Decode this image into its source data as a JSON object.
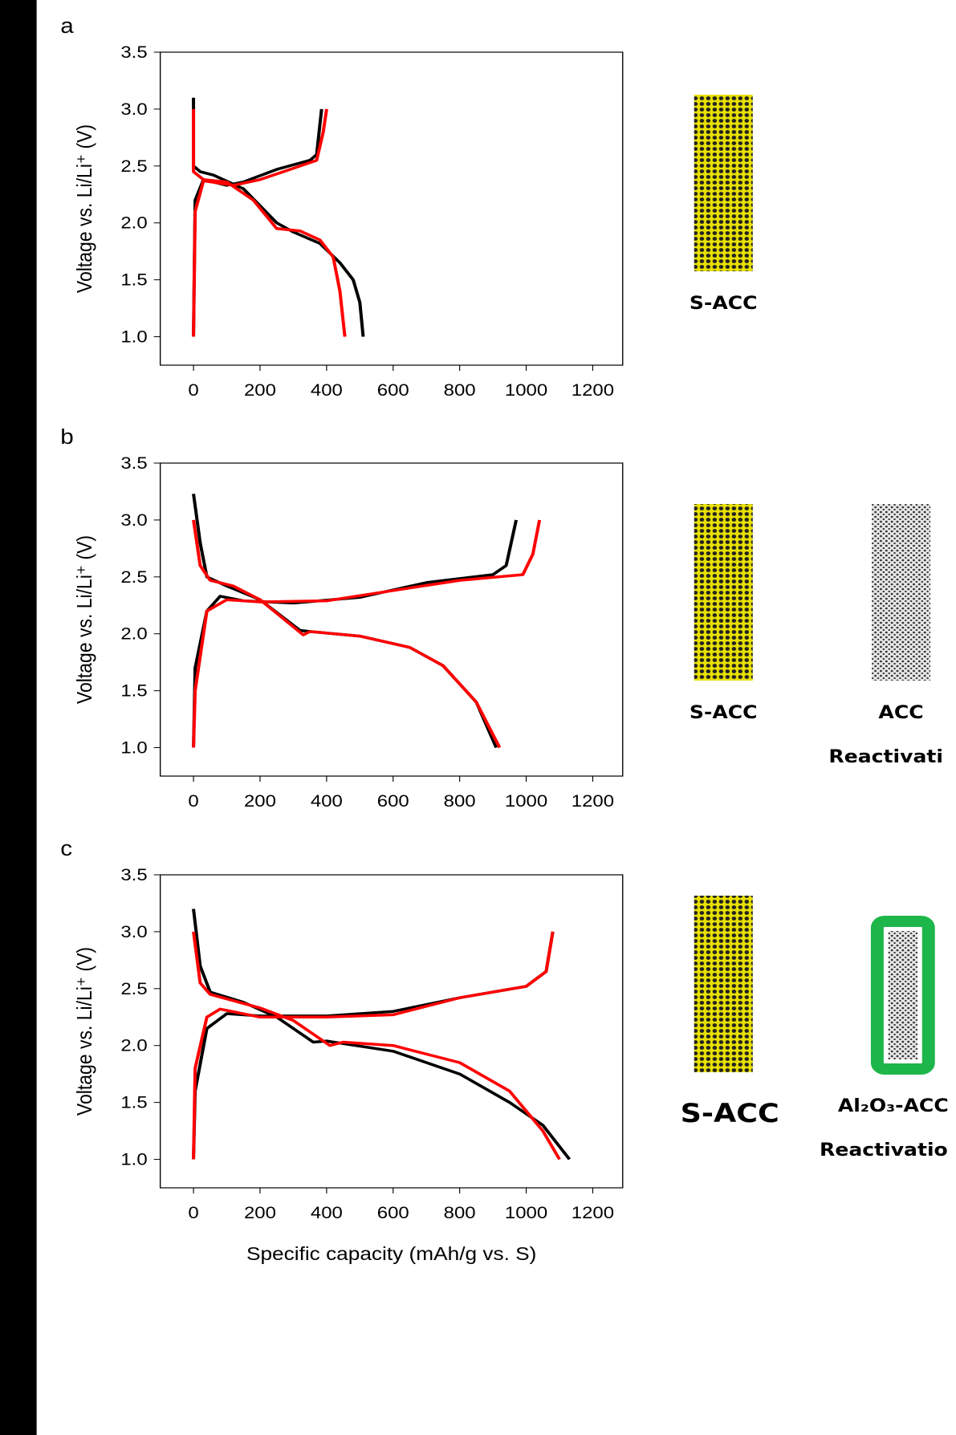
{
  "chart_data": [
    {
      "type": "line",
      "label": "a",
      "y_label": "Voltage vs. Li/Li⁺ (V)",
      "xlim": [
        -100,
        1290
      ],
      "ylim": [
        0.75,
        3.5
      ],
      "xticks": [
        0,
        200,
        400,
        600,
        800,
        1000,
        1200
      ],
      "yticks": [
        {
          "value": 1,
          "label": "1.0"
        },
        1.5,
        {
          "value": 2,
          "label": "2.0"
        },
        2.5,
        {
          "value": 3,
          "label": "3.0"
        },
        3.5
      ],
      "series": [
        {
          "color": "#000000",
          "x": [
            0,
            0,
            20,
            60,
            150,
            250,
            300,
            380,
            440,
            480,
            500,
            510,
            null,
            0,
            5,
            30,
            100,
            150,
            250,
            350,
            370,
            385
          ],
          "values": [
            3.1,
            2.5,
            2.45,
            2.42,
            2.3,
            2.0,
            1.92,
            1.82,
            1.65,
            1.5,
            1.3,
            1.0,
            null,
            1.0,
            2.2,
            2.38,
            2.33,
            2.36,
            2.47,
            2.55,
            2.6,
            3.0
          ]
        },
        {
          "color": "#ff0000",
          "x": [
            0,
            0,
            30,
            100,
            180,
            250,
            320,
            380,
            420,
            440,
            455,
            null,
            0,
            5,
            30,
            120,
            200,
            300,
            370,
            390,
            400
          ],
          "values": [
            3.0,
            2.45,
            2.38,
            2.36,
            2.2,
            1.95,
            1.93,
            1.85,
            1.7,
            1.4,
            1.0,
            null,
            1.0,
            2.1,
            2.37,
            2.33,
            2.38,
            2.48,
            2.55,
            2.8,
            3.0
          ]
        }
      ]
    },
    {
      "type": "line",
      "label": "b",
      "y_label": "Voltage vs. Li/Li⁺ (V)",
      "xlim": [
        -100,
        1290
      ],
      "ylim": [
        0.75,
        3.5
      ],
      "xticks": [
        0,
        200,
        400,
        600,
        800,
        1000,
        1200
      ],
      "yticks": [
        {
          "value": 1,
          "label": "1.0"
        },
        1.5,
        {
          "value": 2,
          "label": "2.0"
        },
        2.5,
        {
          "value": 3,
          "label": "3.0"
        },
        3.5
      ],
      "series": [
        {
          "color": "#000000",
          "x": [
            0,
            20,
            40,
            100,
            200,
            320,
            350,
            500,
            650,
            750,
            850,
            910,
            null,
            0,
            5,
            40,
            80,
            150,
            300,
            500,
            700,
            900,
            940,
            970
          ],
          "values": [
            3.23,
            2.8,
            2.5,
            2.42,
            2.3,
            2.03,
            2.02,
            1.98,
            1.88,
            1.72,
            1.4,
            1.0,
            null,
            1.0,
            1.7,
            2.2,
            2.33,
            2.29,
            2.27,
            2.32,
            2.45,
            2.52,
            2.6,
            3.0
          ]
        },
        {
          "color": "#ff0000",
          "x": [
            0,
            20,
            50,
            120,
            200,
            330,
            350,
            500,
            650,
            750,
            850,
            920,
            null,
            0,
            5,
            40,
            100,
            200,
            400,
            600,
            800,
            990,
            1020,
            1040
          ],
          "values": [
            3.0,
            2.6,
            2.47,
            2.42,
            2.3,
            1.99,
            2.02,
            1.98,
            1.88,
            1.72,
            1.4,
            1.0,
            null,
            1.0,
            1.5,
            2.2,
            2.3,
            2.28,
            2.29,
            2.38,
            2.47,
            2.52,
            2.7,
            3.0
          ]
        }
      ]
    },
    {
      "type": "line",
      "label": "c",
      "y_label": "Voltage vs. Li/Li⁺ (V)",
      "x_label": "Specific capacity (mAh/g vs. S)",
      "xlim": [
        -100,
        1290
      ],
      "ylim": [
        0.75,
        3.5
      ],
      "xticks": [
        0,
        200,
        400,
        600,
        800,
        1000,
        1200
      ],
      "yticks": [
        {
          "value": 1,
          "label": "1.0"
        },
        1.5,
        {
          "value": 2,
          "label": "2.0"
        },
        2.5,
        {
          "value": 3,
          "label": "3.0"
        },
        3.5
      ],
      "series": [
        {
          "color": "#000000",
          "x": [
            0,
            20,
            50,
            150,
            250,
            360,
            400,
            600,
            800,
            950,
            1050,
            1130,
            null,
            0,
            5,
            40,
            100,
            200,
            400,
            600,
            800,
            1000,
            1060,
            1080
          ],
          "values": [
            3.2,
            2.7,
            2.47,
            2.38,
            2.25,
            2.03,
            2.04,
            1.95,
            1.75,
            1.5,
            1.3,
            1.0,
            null,
            1.0,
            1.6,
            2.15,
            2.28,
            2.26,
            2.26,
            2.3,
            2.42,
            2.52,
            2.65,
            3.0
          ]
        },
        {
          "color": "#ff0000",
          "x": [
            0,
            20,
            50,
            200,
            300,
            410,
            450,
            600,
            800,
            950,
            1050,
            1100,
            null,
            0,
            5,
            40,
            80,
            200,
            400,
            600,
            800,
            1000,
            1060,
            1080
          ],
          "values": [
            3.0,
            2.55,
            2.45,
            2.33,
            2.22,
            2.0,
            2.03,
            2.0,
            1.85,
            1.6,
            1.25,
            1.0,
            null,
            1.0,
            1.8,
            2.25,
            2.32,
            2.25,
            2.25,
            2.27,
            2.42,
            2.52,
            2.65,
            3.0
          ]
        }
      ]
    }
  ],
  "schematics": [
    {
      "labels": [
        "S-ACC"
      ]
    },
    {
      "labels": [
        "S-ACC",
        "ACC",
        "Reactivati"
      ]
    },
    {
      "labels": [
        "S-ACC",
        "Al₂O₃-ACC",
        "Reactivatio"
      ]
    }
  ]
}
